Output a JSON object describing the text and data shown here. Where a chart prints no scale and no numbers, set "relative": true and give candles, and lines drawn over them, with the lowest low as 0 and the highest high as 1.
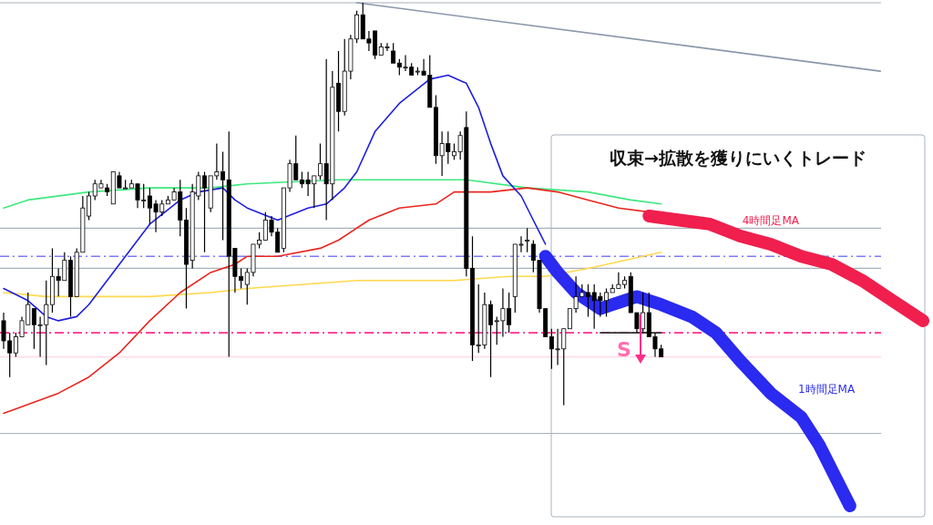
{
  "chart_data": {
    "type": "candlestick",
    "relative": true,
    "annotations": [
      "収束→拡散を獲りにいくトレード",
      "S"
    ],
    "categories": [
      null,
      null,
      null,
      null,
      null,
      null,
      null,
      null,
      null,
      null,
      null,
      null,
      null,
      null,
      null,
      null,
      null,
      null,
      null,
      null,
      null,
      null,
      null,
      null,
      null,
      null,
      null,
      null,
      null,
      null,
      null,
      null,
      null,
      null,
      null,
      null,
      null,
      null,
      null,
      null,
      null,
      null,
      null,
      null,
      null,
      null,
      null,
      null,
      null,
      null,
      null,
      null,
      null,
      null,
      null,
      null,
      null,
      null,
      null,
      null,
      null,
      null,
      null,
      null,
      null,
      null,
      null,
      null,
      null,
      null,
      null,
      null,
      null,
      null,
      null,
      null,
      null,
      null,
      null,
      null,
      null,
      null,
      null,
      null,
      null,
      null,
      null,
      null,
      null,
      null,
      null,
      null,
      null,
      null,
      null,
      null,
      null,
      null,
      null,
      null,
      null,
      null,
      null,
      null,
      null,
      null,
      null,
      null,
      null,
      null,
      null,
      null,
      null,
      null,
      null,
      null,
      null,
      null,
      null,
      null,
      null,
      null,
      null,
      null,
      null,
      null,
      null,
      null,
      null,
      null,
      null,
      null,
      null,
      null,
      null,
      null,
      null,
      null,
      null,
      null,
      null,
      null,
      null,
      null,
      null,
      null,
      null,
      null,
      null,
      null,
      null,
      null
    ],
    "ohlc": [
      [
        0.21,
        0.23,
        0.14,
        0.16
      ],
      [
        0.16,
        0.18,
        0.07,
        0.13
      ],
      [
        0.13,
        0.18,
        0.12,
        0.17
      ],
      [
        0.17,
        0.22,
        0.17,
        0.21
      ],
      [
        0.2,
        0.28,
        0.2,
        0.25
      ],
      [
        0.24,
        0.24,
        0.14,
        0.2
      ],
      [
        0.2,
        0.22,
        0.12,
        0.2
      ],
      [
        0.2,
        0.31,
        0.1,
        0.25
      ],
      [
        0.25,
        0.39,
        0.23,
        0.32
      ],
      [
        0.32,
        0.34,
        0.27,
        0.31
      ],
      [
        0.31,
        0.38,
        0.31,
        0.36
      ],
      [
        0.36,
        0.37,
        0.22,
        0.27
      ],
      [
        0.27,
        0.39,
        0.27,
        0.38
      ],
      [
        0.38,
        0.52,
        0.38,
        0.49
      ],
      [
        0.47,
        0.53,
        0.46,
        0.52
      ],
      [
        0.52,
        0.56,
        0.51,
        0.55
      ],
      [
        0.54,
        0.56,
        0.54,
        0.55
      ],
      [
        0.54,
        0.55,
        0.52,
        0.53
      ],
      [
        0.5,
        0.58,
        0.5,
        0.58
      ],
      [
        0.57,
        0.58,
        0.54,
        0.54
      ],
      [
        0.54,
        0.56,
        0.54,
        0.54
      ],
      [
        0.54,
        0.56,
        0.54,
        0.55
      ],
      [
        0.55,
        0.55,
        0.49,
        0.51
      ],
      [
        0.51,
        0.55,
        0.49,
        0.51
      ],
      [
        0.52,
        0.54,
        0.45,
        0.49
      ],
      [
        0.5,
        0.51,
        0.43,
        0.48
      ],
      [
        0.48,
        0.51,
        0.47,
        0.5
      ],
      [
        0.5,
        0.52,
        0.5,
        0.51
      ],
      [
        0.51,
        0.54,
        0.51,
        0.53
      ],
      [
        0.53,
        0.56,
        0.42,
        0.46
      ],
      [
        0.46,
        0.49,
        0.24,
        0.35
      ],
      [
        0.36,
        0.55,
        0.34,
        0.53
      ],
      [
        0.52,
        0.58,
        0.51,
        0.57
      ],
      [
        0.57,
        0.58,
        0.38,
        0.54
      ],
      [
        0.49,
        0.57,
        0.48,
        0.57
      ],
      [
        0.57,
        0.65,
        0.56,
        0.58
      ],
      [
        0.58,
        0.63,
        0.41,
        0.56
      ],
      [
        0.56,
        0.68,
        0.12,
        0.37
      ],
      [
        0.39,
        0.39,
        0.28,
        0.32
      ],
      [
        0.32,
        0.34,
        0.29,
        0.31
      ],
      [
        0.3,
        0.34,
        0.25,
        0.33
      ],
      [
        0.33,
        0.4,
        0.32,
        0.4
      ],
      [
        0.4,
        0.43,
        0.39,
        0.41
      ],
      [
        0.41,
        0.48,
        0.41,
        0.46
      ],
      [
        0.46,
        0.47,
        0.42,
        0.43
      ],
      [
        0.43,
        0.44,
        0.38,
        0.38
      ],
      [
        0.39,
        0.54,
        0.38,
        0.54
      ],
      [
        0.54,
        0.61,
        0.53,
        0.6
      ],
      [
        0.6,
        0.67,
        0.56,
        0.56
      ],
      [
        0.56,
        0.58,
        0.54,
        0.55
      ],
      [
        0.56,
        0.58,
        0.52,
        0.55
      ],
      [
        0.55,
        0.57,
        0.49,
        0.57
      ],
      [
        0.57,
        0.65,
        0.56,
        0.6
      ],
      [
        0.6,
        0.86,
        0.46,
        0.55
      ],
      [
        0.55,
        0.83,
        0.51,
        0.79
      ],
      [
        0.8,
        0.88,
        0.68,
        0.73
      ],
      [
        0.73,
        0.91,
        0.72,
        0.83
      ],
      [
        0.83,
        0.92,
        0.81,
        0.91
      ],
      [
        0.91,
        0.98,
        0.9,
        0.97
      ],
      [
        0.97,
        1.0,
        0.91,
        0.91
      ],
      [
        0.91,
        0.93,
        0.88,
        0.9
      ],
      [
        0.93,
        0.93,
        0.86,
        0.87
      ],
      [
        0.87,
        0.9,
        0.87,
        0.89
      ],
      [
        0.89,
        0.9,
        0.88,
        0.89
      ],
      [
        0.88,
        0.9,
        0.85,
        0.85
      ],
      [
        0.85,
        0.86,
        0.82,
        0.84
      ],
      [
        0.84,
        0.87,
        0.83,
        0.84
      ],
      [
        0.84,
        0.85,
        0.82,
        0.82
      ],
      [
        0.83,
        0.84,
        0.82,
        0.83
      ],
      [
        0.83,
        0.86,
        0.82,
        0.82
      ],
      [
        0.82,
        0.87,
        0.74,
        0.74
      ],
      [
        0.74,
        0.77,
        0.6,
        0.62
      ],
      [
        0.62,
        0.68,
        0.57,
        0.65
      ],
      [
        0.65,
        0.68,
        0.6,
        0.63
      ],
      [
        0.62,
        0.65,
        0.61,
        0.63
      ],
      [
        0.63,
        0.68,
        0.61,
        0.67
      ],
      [
        0.69,
        0.73,
        0.32,
        0.34
      ],
      [
        0.34,
        0.42,
        0.11,
        0.15
      ],
      [
        0.15,
        0.3,
        0.13,
        0.15
      ],
      [
        0.15,
        0.28,
        0.14,
        0.25
      ],
      [
        0.25,
        0.26,
        0.07,
        0.2
      ],
      [
        0.21,
        0.22,
        0.15,
        0.21
      ],
      [
        0.21,
        0.29,
        0.17,
        0.24
      ],
      [
        0.24,
        0.28,
        0.18,
        0.2
      ],
      [
        0.27,
        0.4,
        0.23,
        0.4
      ],
      [
        0.4,
        0.42,
        0.38,
        0.4
      ],
      [
        0.41,
        0.44,
        0.38,
        0.41
      ],
      [
        0.4,
        0.41,
        0.33,
        0.36
      ],
      [
        0.36,
        0.36,
        0.23,
        0.24
      ],
      [
        0.24,
        0.24,
        0.17,
        0.17
      ],
      [
        0.17,
        0.19,
        0.09,
        0.14
      ],
      [
        0.14,
        0.19,
        0.1,
        0.14
      ],
      [
        0.14,
        0.19,
        0.0,
        0.19
      ],
      [
        0.19,
        0.24,
        0.19,
        0.24
      ],
      [
        0.24,
        0.32,
        0.23,
        0.27
      ],
      [
        0.27,
        0.3,
        0.27,
        0.28
      ],
      [
        0.28,
        0.3,
        0.22,
        0.27
      ],
      [
        0.28,
        0.3,
        0.19,
        0.26
      ],
      [
        0.27,
        0.28,
        0.22,
        0.26
      ],
      [
        0.26,
        0.29,
        0.22,
        0.28
      ],
      [
        0.28,
        0.3,
        0.28,
        0.29
      ],
      [
        0.29,
        0.33,
        0.29,
        0.3
      ],
      [
        0.3,
        0.32,
        0.29,
        0.31
      ],
      [
        0.32,
        0.33,
        0.23,
        0.23
      ],
      [
        0.23,
        0.23,
        0.18,
        0.19
      ],
      [
        0.19,
        0.28,
        0.18,
        0.23
      ],
      [
        0.23,
        0.28,
        0.17,
        0.17
      ],
      [
        0.17,
        0.18,
        0.12,
        0.14
      ],
      [
        0.14,
        0.15,
        0.12,
        0.12
      ],
      null,
      null,
      null,
      null,
      null,
      null,
      null,
      null,
      null,
      null,
      null,
      null,
      null,
      null,
      null,
      null,
      null,
      null,
      null,
      null,
      null,
      null,
      null,
      null,
      null,
      null,
      null,
      null,
      null,
      null,
      null,
      null,
      null,
      null,
      null,
      null,
      null,
      null,
      null,
      null,
      null,
      null,
      null
    ],
    "series": [
      {
        "type": "line",
        "color": "#3ee87e",
        "values": [
          0.49,
          null,
          null,
          null,
          0.51,
          null,
          null,
          null,
          null,
          null,
          null,
          null,
          null,
          null,
          0.53,
          null,
          null,
          null,
          null,
          null,
          null,
          null,
          null,
          null,
          0.54,
          null,
          null,
          null,
          null,
          null,
          null,
          null,
          null,
          null,
          0.54,
          null,
          null,
          null,
          null,
          null,
          0.55,
          null,
          null,
          null,
          null,
          null,
          null,
          null,
          null,
          null,
          null,
          null,
          null,
          null,
          null,
          0.56,
          null,
          null,
          null,
          null,
          null,
          null,
          null,
          null,
          null,
          null,
          null,
          null,
          null,
          null,
          null,
          null,
          null,
          null,
          0.56,
          null,
          0.56,
          null,
          null,
          null,
          null,
          null,
          null,
          null,
          null,
          null,
          0.54,
          null,
          null,
          null,
          null,
          null,
          null,
          null,
          null,
          null,
          0.53,
          null,
          null,
          null,
          null,
          null,
          null,
          0.51,
          null,
          null,
          null,
          null,
          0.5,
          null,
          null,
          null,
          null,
          null,
          null,
          null,
          null,
          null,
          null,
          null,
          null,
          null,
          null,
          null,
          null,
          null,
          null,
          null,
          null,
          null,
          null,
          null,
          null,
          null,
          null,
          null,
          null,
          null,
          null,
          null,
          null,
          null,
          null,
          null,
          null,
          null,
          null,
          null,
          null,
          null,
          null,
          null
        ]
      },
      {
        "type": "line",
        "color": "#ffd84d",
        "values": [
          0.28,
          null,
          null,
          null,
          null,
          null,
          null,
          0.27,
          null,
          null,
          null,
          null,
          null,
          null,
          null,
          null,
          null,
          null,
          null,
          null,
          null,
          null,
          null,
          null,
          0.27,
          null,
          null,
          null,
          null,
          null,
          null,
          null,
          null,
          null,
          0.28,
          null,
          null,
          null,
          null,
          null,
          0.29,
          null,
          null,
          null,
          null,
          null,
          null,
          null,
          null,
          null,
          null,
          null,
          null,
          null,
          null,
          null,
          null,
          null,
          0.31,
          null,
          null,
          null,
          null,
          null,
          null,
          null,
          null,
          null,
          null,
          null,
          null,
          null,
          null,
          null,
          0.31,
          null,
          null,
          null,
          null,
          null,
          null,
          null,
          null,
          0.32,
          null,
          null,
          null,
          null,
          null,
          0.32,
          null,
          null,
          null,
          null,
          null,
          null,
          0.34,
          null,
          null,
          null,
          null,
          null,
          null,
          null,
          null,
          null,
          null,
          null,
          0.38,
          null,
          null,
          null,
          null,
          null,
          null,
          null,
          null,
          null,
          null,
          null,
          null,
          null,
          null,
          null,
          null,
          null,
          null,
          null,
          null,
          null,
          null,
          null,
          null,
          null,
          null,
          null,
          null,
          null,
          null,
          null,
          null,
          null,
          null,
          null,
          null,
          null,
          null,
          null,
          null,
          null,
          null,
          null
        ]
      },
      {
        "type": "line",
        "color": "#e8261e",
        "values": [
          -0.02,
          null,
          null,
          null,
          null,
          null,
          null,
          null,
          null,
          0.03,
          null,
          null,
          null,
          null,
          0.07,
          null,
          null,
          null,
          null,
          0.13,
          null,
          null,
          null,
          null,
          0.21,
          null,
          null,
          null,
          null,
          0.28,
          null,
          null,
          null,
          null,
          0.33,
          null,
          null,
          null,
          0.35,
          null,
          0.37,
          null,
          null,
          null,
          null,
          0.37,
          null,
          null,
          null,
          null,
          null,
          null,
          0.39,
          null,
          null,
          0.41,
          null,
          null,
          null,
          null,
          0.46,
          null,
          null,
          null,
          null,
          0.49,
          null,
          null,
          null,
          null,
          null,
          0.5,
          null,
          null,
          0.53,
          null,
          null,
          null,
          null,
          null,
          0.53,
          null,
          null,
          null,
          null,
          null,
          0.54,
          null,
          null,
          null,
          null,
          0.53,
          null,
          null,
          null,
          null,
          0.51,
          null,
          null,
          null,
          null,
          0.49,
          null,
          null,
          null,
          null,
          0.48,
          null,
          null,
          null,
          null,
          null,
          null,
          null,
          null,
          null,
          null,
          null,
          null,
          null,
          null,
          null,
          null,
          null,
          null,
          null,
          null,
          null,
          null,
          null,
          null,
          null,
          null,
          null,
          null,
          null,
          null,
          null,
          null,
          null,
          null,
          null,
          null,
          null,
          null,
          null,
          null,
          null,
          null,
          null,
          null,
          null
        ]
      },
      {
        "type": "line",
        "color": "#1f1fe0",
        "values": [
          0.29,
          null,
          null,
          null,
          0.26,
          null,
          null,
          0.22,
          null,
          0.21,
          null,
          null,
          0.22,
          null,
          0.25,
          null,
          null,
          null,
          null,
          0.35,
          null,
          null,
          null,
          null,
          0.45,
          null,
          null,
          null,
          null,
          0.51,
          null,
          null,
          0.53,
          null,
          null,
          null,
          0.54,
          null,
          0.51,
          null,
          0.49,
          null,
          null,
          null,
          null,
          0.46,
          null,
          null,
          null,
          null,
          0.49,
          null,
          null,
          0.5,
          null,
          null,
          0.54,
          null,
          0.58,
          null,
          null,
          0.68,
          null,
          null,
          null,
          0.75,
          null,
          null,
          null,
          null,
          0.81,
          null,
          null,
          0.82,
          null,
          null,
          0.8,
          null,
          0.74,
          null,
          0.65,
          null,
          0.57,
          null,
          null,
          0.52,
          null,
          0.46,
          null,
          0.4,
          null,
          null,
          null,
          null,
          null,
          null,
          null,
          null,
          null,
          null,
          null,
          null,
          null,
          null,
          null,
          null,
          null,
          null,
          null,
          null,
          null,
          null,
          null,
          null,
          null,
          null,
          null,
          null,
          null,
          null,
          null,
          null,
          null,
          null,
          null,
          null,
          null,
          null,
          null,
          null,
          null,
          null,
          null,
          null,
          null,
          null,
          null,
          null,
          null,
          null,
          null,
          null,
          null,
          null,
          null,
          null,
          null,
          null,
          null,
          null,
          null,
          null
        ]
      },
      {
        "type": "line",
        "color": "#8a98aa",
        "values": [
          null,
          null,
          null,
          null,
          null,
          null,
          null,
          null,
          null,
          null,
          null,
          null,
          null,
          null,
          null,
          null,
          null,
          null,
          null,
          null,
          null,
          null,
          null,
          null,
          null,
          null,
          null,
          null,
          null,
          null,
          null,
          null,
          null,
          null,
          null,
          null,
          null,
          null,
          null,
          null,
          null,
          null,
          null,
          null,
          null,
          null,
          null,
          null,
          null,
          null,
          null,
          null,
          null,
          null,
          null,
          null,
          null,
          null,
          1.0,
          null,
          null,
          null,
          null,
          null,
          null,
          null,
          null,
          null,
          null,
          null,
          null,
          null,
          null,
          null,
          null,
          null,
          null,
          null,
          null,
          null,
          null,
          null,
          null,
          null,
          null,
          null,
          null,
          null,
          null,
          null,
          null,
          null,
          null,
          null,
          null,
          null,
          null,
          null,
          null,
          null,
          null,
          null,
          null,
          null,
          null,
          null,
          null,
          null,
          null,
          null,
          null,
          null,
          null,
          null,
          null,
          null,
          null,
          null,
          null,
          null,
          null,
          null,
          null,
          null,
          null,
          null,
          null,
          null,
          null,
          null,
          null,
          null,
          null,
          null,
          null,
          null,
          null,
          null,
          null,
          null,
          null,
          null,
          null,
          null,
          0.83,
          null,
          null,
          null,
          null,
          null,
          null,
          null
        ]
      },
      {
        "type": "line",
        "color": "#333333",
        "values": [
          null,
          null,
          null,
          null,
          null,
          null,
          null,
          null,
          null,
          null,
          null,
          null,
          null,
          null,
          null,
          null,
          null,
          null,
          null,
          null,
          null,
          null,
          null,
          null,
          null,
          null,
          null,
          null,
          null,
          null,
          null,
          null,
          null,
          null,
          null,
          null,
          null,
          null,
          null,
          null,
          null,
          null,
          null,
          null,
          null,
          null,
          null,
          null,
          null,
          null,
          null,
          null,
          null,
          null,
          null,
          null,
          null,
          null,
          null,
          null,
          null,
          null,
          null,
          null,
          null,
          null,
          null,
          null,
          null,
          null,
          null,
          null,
          null,
          null,
          null,
          null,
          null,
          null,
          null,
          null,
          null,
          null,
          null,
          null,
          null,
          null,
          null,
          null,
          null,
          null,
          null,
          null,
          null,
          null,
          null,
          null,
          null,
          null,
          0.18,
          null,
          null,
          null,
          null,
          null,
          null,
          null,
          null,
          null,
          0.18,
          null,
          null,
          null,
          null,
          null,
          null,
          null,
          null,
          null,
          null,
          null,
          null,
          null,
          null,
          null,
          null,
          null,
          null,
          null,
          null,
          null,
          null,
          null,
          null,
          null,
          null,
          null,
          null,
          null,
          null,
          null,
          null,
          null,
          null,
          null,
          null,
          null,
          null,
          null,
          null,
          null,
          null,
          null
        ]
      },
      {
        "type": "line",
        "name": "4時間足MA",
        "color": "#f01f4d",
        "values": [
          null,
          null,
          null,
          null,
          null,
          null,
          null,
          null,
          null,
          null,
          null,
          null,
          null,
          null,
          null,
          null,
          null,
          null,
          null,
          null,
          null,
          null,
          null,
          null,
          null,
          null,
          null,
          null,
          null,
          null,
          null,
          null,
          null,
          null,
          null,
          null,
          null,
          null,
          null,
          null,
          null,
          null,
          null,
          null,
          null,
          null,
          null,
          null,
          null,
          null,
          null,
          null,
          null,
          null,
          null,
          null,
          null,
          null,
          null,
          null,
          null,
          null,
          null,
          null,
          null,
          null,
          null,
          null,
          null,
          null,
          null,
          null,
          null,
          null,
          null,
          null,
          null,
          null,
          null,
          null,
          null,
          null,
          null,
          null,
          null,
          null,
          null,
          null,
          null,
          null,
          null,
          null,
          null,
          null,
          null,
          null,
          null,
          null,
          null,
          null,
          null,
          null,
          null,
          null,
          null,
          null,
          0.47,
          null,
          null,
          null,
          null,
          0.46,
          null,
          null,
          null,
          null,
          0.45,
          null,
          null,
          null,
          null,
          0.42,
          null,
          null,
          null,
          null,
          0.4,
          null,
          null,
          null,
          null,
          0.37,
          null,
          null,
          null,
          null,
          0.35,
          null,
          null,
          null,
          null,
          0.31,
          null,
          null,
          null,
          null,
          0.26,
          null,
          null,
          null,
          null,
          0.21
        ]
      },
      {
        "type": "line",
        "name": "1時間足MA",
        "color": "#2a2af0",
        "values": [
          null,
          null,
          null,
          null,
          null,
          null,
          null,
          null,
          null,
          null,
          null,
          null,
          null,
          null,
          null,
          null,
          null,
          null,
          null,
          null,
          null,
          null,
          null,
          null,
          null,
          null,
          null,
          null,
          null,
          null,
          null,
          null,
          null,
          null,
          null,
          null,
          null,
          null,
          null,
          null,
          null,
          null,
          null,
          null,
          null,
          null,
          null,
          null,
          null,
          null,
          null,
          null,
          null,
          null,
          null,
          null,
          null,
          null,
          null,
          null,
          null,
          null,
          null,
          null,
          null,
          null,
          null,
          null,
          null,
          null,
          null,
          null,
          null,
          null,
          null,
          null,
          null,
          null,
          null,
          null,
          null,
          null,
          null,
          null,
          null,
          null,
          null,
          null,
          null,
          0.37,
          null,
          0.33,
          null,
          null,
          0.28,
          null,
          null,
          null,
          0.24,
          null,
          0.25,
          null,
          null,
          null,
          0.27,
          null,
          null,
          null,
          0.25,
          null,
          null,
          null,
          null,
          0.22,
          null,
          null,
          null,
          0.18,
          null,
          null,
          null,
          0.11,
          null,
          null,
          null,
          null,
          0.03,
          null,
          null,
          null,
          null,
          -0.03,
          null,
          null,
          -0.1,
          null,
          -0.16,
          null,
          null,
          -0.25,
          null,
          null,
          null,
          null,
          null,
          null,
          null,
          null,
          null,
          null,
          null,
          null
        ]
      }
    ],
    "ref_lines": [
      {
        "axis": "y",
        "value": 1.0,
        "color": "#a8b0ba",
        "line_style": "solid"
      },
      {
        "axis": "y",
        "value": 0.44,
        "color": "#a8b0ba",
        "line_style": "solid"
      },
      {
        "axis": "y",
        "value": 0.37,
        "color": "#7b7bff",
        "line_style": "dashed"
      },
      {
        "axis": "y",
        "value": 0.34,
        "color": "#a8b0ba",
        "line_style": "solid"
      },
      {
        "axis": "y",
        "value": 0.18,
        "color": "#ff2d8a",
        "line_style": "dashed"
      },
      {
        "axis": "y",
        "value": 0.12,
        "color": "#ffd6e4",
        "line_style": "solid"
      },
      {
        "axis": "y",
        "value": -0.07,
        "color": "#a8b0ba",
        "line_style": "solid"
      }
    ]
  }
}
